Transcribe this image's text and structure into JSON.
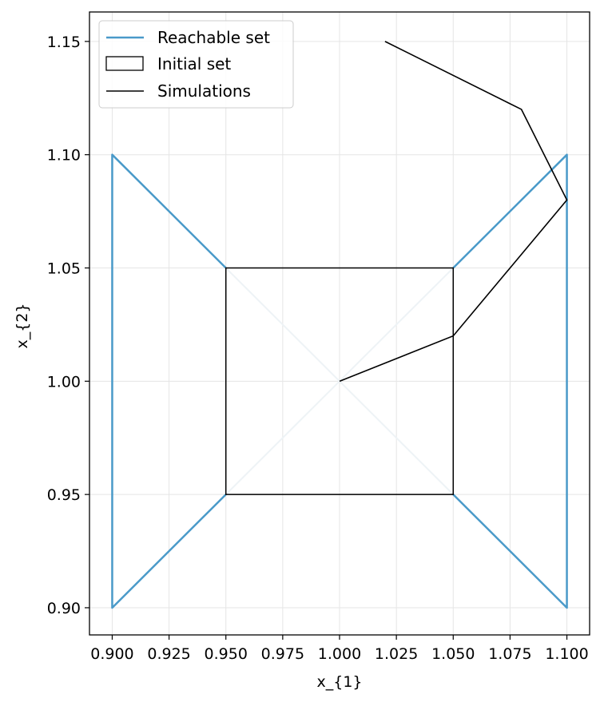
{
  "chart_data": {
    "type": "line",
    "xlabel": "x_{1}",
    "ylabel": "x_{2}",
    "xlim": [
      0.89,
      1.11
    ],
    "ylim": [
      0.888,
      1.163
    ],
    "xticks": [
      "0.900",
      "0.925",
      "0.950",
      "0.975",
      "1.000",
      "1.025",
      "1.050",
      "1.075",
      "1.100"
    ],
    "yticks": [
      "0.90",
      "0.95",
      "1.00",
      "1.05",
      "1.10",
      "1.15"
    ],
    "grid": true,
    "legend_position": "top-left",
    "legend": [
      {
        "label": "Reachable set",
        "kind": "line",
        "color": "#4a9ac9"
      },
      {
        "label": "Initial set",
        "kind": "box",
        "color": "#000000"
      },
      {
        "label": "Simulations",
        "kind": "line",
        "color": "#000000"
      }
    ],
    "series": [
      {
        "name": "Reachable set",
        "color": "#4a9ac9",
        "segments": [
          [
            [
              0.95,
              1.05
            ],
            [
              0.9,
              1.1
            ],
            [
              0.9,
              0.9
            ],
            [
              0.95,
              0.95
            ]
          ],
          [
            [
              1.05,
              1.05
            ],
            [
              1.1,
              1.1
            ],
            [
              1.1,
              0.9
            ],
            [
              1.05,
              0.95
            ]
          ]
        ],
        "faint_segments": [
          [
            [
              0.95,
              1.05
            ],
            [
              1.05,
              0.95
            ]
          ],
          [
            [
              0.95,
              0.95
            ],
            [
              1.05,
              1.05
            ]
          ]
        ]
      },
      {
        "name": "Initial set",
        "color": "#000000",
        "box": {
          "x": [
            0.95,
            1.05
          ],
          "y": [
            0.95,
            1.05
          ]
        }
      },
      {
        "name": "Simulations",
        "color": "#000000",
        "points": [
          [
            1.0,
            1.0
          ],
          [
            1.05,
            1.02
          ],
          [
            1.1,
            1.08
          ],
          [
            1.08,
            1.12
          ],
          [
            1.02,
            1.15
          ]
        ]
      }
    ]
  }
}
